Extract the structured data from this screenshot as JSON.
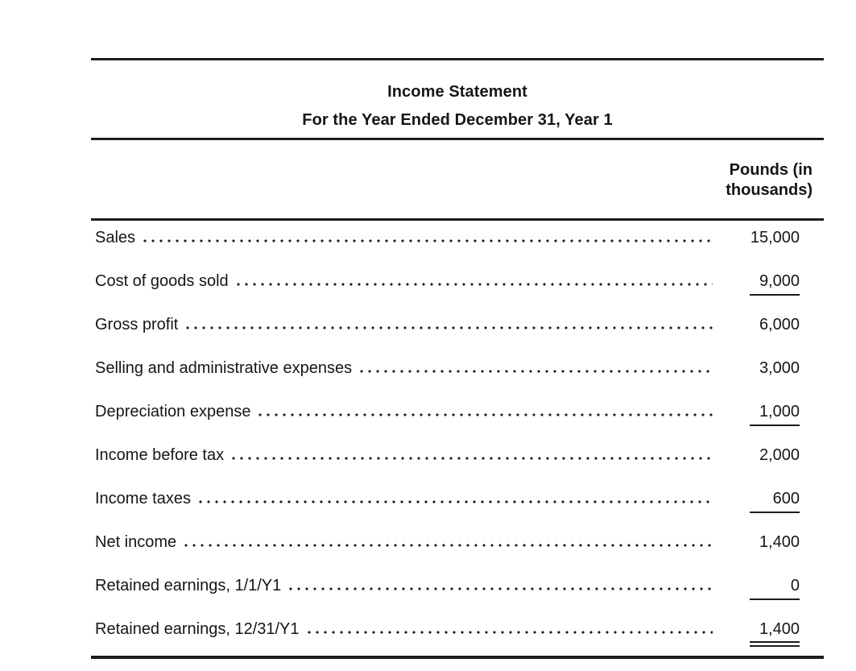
{
  "document": {
    "title": "Income Statement",
    "subtitle": "For the Year Ended December 31, Year 1",
    "column_header": "Pounds (in thousands)",
    "rows": [
      {
        "label": "Sales",
        "value": "15,000",
        "underline": "none"
      },
      {
        "label": "Cost of goods sold",
        "value": "9,000",
        "underline": "single"
      },
      {
        "label": "Gross profit",
        "value": "6,000",
        "underline": "none"
      },
      {
        "label": "Selling and administrative expenses",
        "value": "3,000",
        "underline": "none"
      },
      {
        "label": "Depreciation expense",
        "value": "1,000",
        "underline": "single"
      },
      {
        "label": "Income before tax",
        "value": "2,000",
        "underline": "none"
      },
      {
        "label": "Income taxes",
        "value": "600",
        "underline": "single"
      },
      {
        "label": "Net income",
        "value": "1,400",
        "underline": "none"
      },
      {
        "label": "Retained earnings, 1/1/Y1",
        "value": "0",
        "underline": "single"
      },
      {
        "label": "Retained earnings, 12/31/Y1",
        "value": "1,400",
        "underline": "double"
      }
    ],
    "colors": {
      "text": "#161616",
      "rule": "#1c1c1c",
      "background": "#ffffff"
    }
  }
}
